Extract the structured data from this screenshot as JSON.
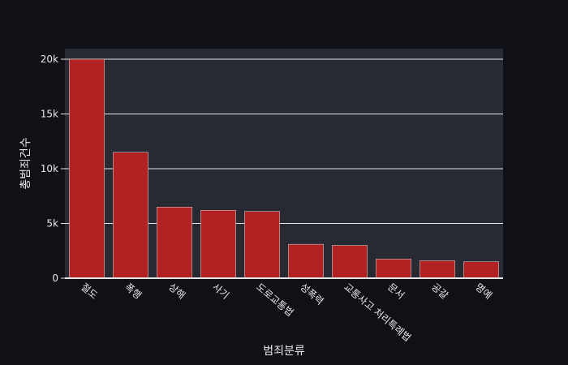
{
  "chart_data": {
    "type": "bar",
    "title": "",
    "xlabel": "범죄분류",
    "ylabel": "총범죄건수",
    "categories": [
      "절도",
      "폭행",
      "상해",
      "사기",
      "도로교통법",
      "성폭력",
      "교통사고 처리특례법",
      "문서",
      "공갈",
      "명예"
    ],
    "values": [
      20000,
      11500,
      6500,
      6200,
      6100,
      3100,
      3000,
      1750,
      1600,
      1500
    ],
    "ylim": [
      0,
      20000
    ],
    "yticks": [
      0,
      5000,
      10000,
      15000,
      20000
    ],
    "ytick_labels": [
      "0",
      "5k",
      "10k",
      "15k",
      "20k"
    ],
    "grid": true,
    "legend": "none",
    "colors": {
      "page_bg": "#0f1117",
      "plot_bg": "#282a33",
      "bar_fill": "#b22222",
      "bar_stroke": "#e0e0e0",
      "grid": "#e6e6e6",
      "text": "#e8e8e8"
    }
  }
}
